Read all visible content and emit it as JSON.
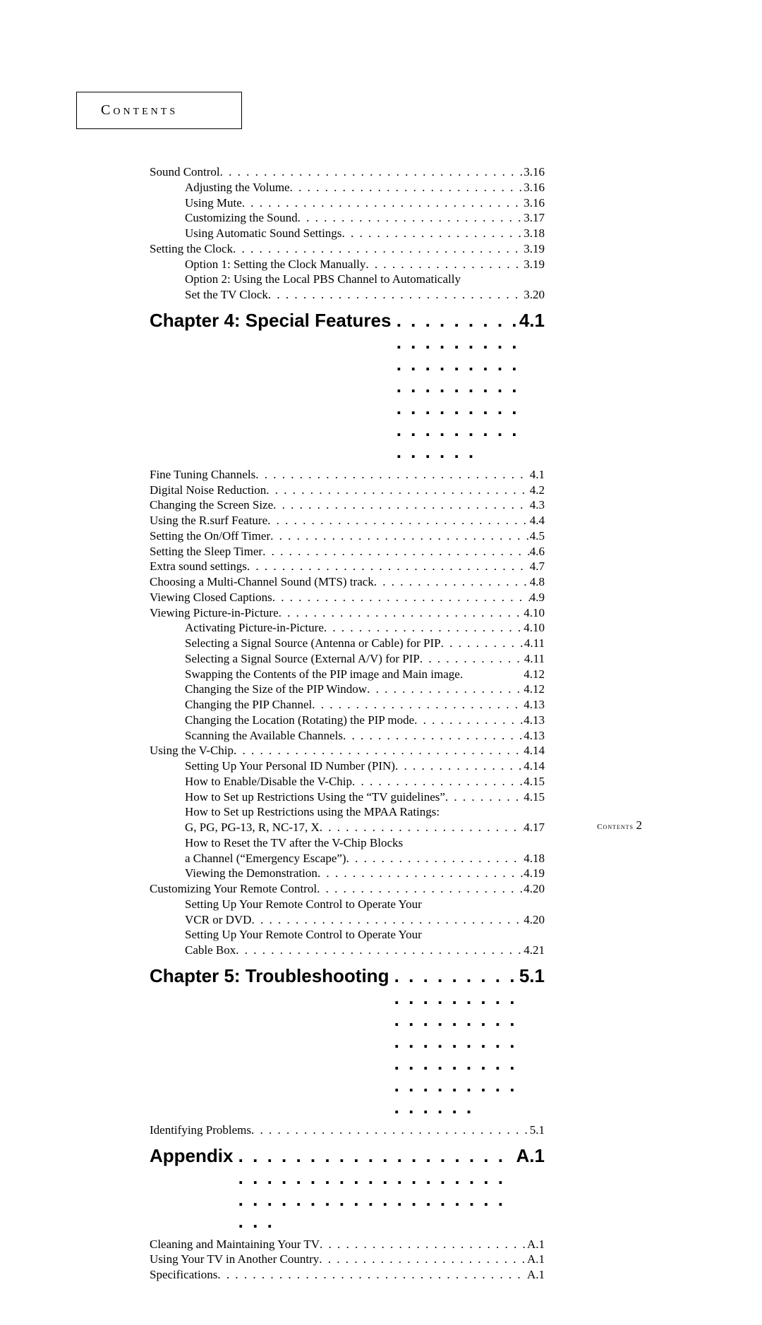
{
  "header": "Contents",
  "footer_label": "Contents",
  "footer_page": "2",
  "sections": [
    {
      "type": "group",
      "items": [
        {
          "indent": 0,
          "label": "Sound Control",
          "page": "3.16"
        },
        {
          "indent": 1,
          "label": "Adjusting the Volume",
          "page": "3.16"
        },
        {
          "indent": 1,
          "label": "Using Mute",
          "page": "3.16"
        },
        {
          "indent": 1,
          "label": "Customizing the Sound",
          "page": "3.17"
        },
        {
          "indent": 1,
          "label": "Using Automatic Sound Settings",
          "page": "3.18"
        },
        {
          "indent": 0,
          "label": "Setting the Clock",
          "page": "3.19"
        },
        {
          "indent": 1,
          "label": "Option 1: Setting the Clock Manually",
          "page": "3.19"
        },
        {
          "indent": 1,
          "label": "Option 2: Using the Local PBS Channel to Automatically",
          "nopage": true
        },
        {
          "indent": 1,
          "label": "Set the TV Clock",
          "page": "3.20"
        }
      ]
    },
    {
      "type": "chapter",
      "label": "Chapter 4: Special Features",
      "page": "4.1",
      "items": [
        {
          "indent": 0,
          "label": "Fine Tuning Channels",
          "page": "4.1"
        },
        {
          "indent": 0,
          "label": "Digital Noise Reduction",
          "page": "4.2"
        },
        {
          "indent": 0,
          "label": "Changing the Screen Size",
          "page": "4.3"
        },
        {
          "indent": 0,
          "label": "Using the R.surf Feature",
          "page": "4.4"
        },
        {
          "indent": 0,
          "label": "Setting the On/Off Timer",
          "page": "4.5"
        },
        {
          "indent": 0,
          "label": "Setting the Sleep Timer",
          "page": "4.6"
        },
        {
          "indent": 0,
          "label": "Extra sound settings",
          "page": "4.7"
        },
        {
          "indent": 0,
          "label": "Choosing a Multi-Channel Sound (MTS) track",
          "page": "4.8"
        },
        {
          "indent": 0,
          "label": "Viewing Closed Captions",
          "page": "4.9"
        },
        {
          "indent": 0,
          "label": "Viewing Picture-in-Picture",
          "page": "4.10"
        },
        {
          "indent": 1,
          "label": "Activating Picture-in-Picture",
          "page": "4.10"
        },
        {
          "indent": 1,
          "label": "Selecting a Signal Source (Antenna or Cable) for PIP",
          "page": "4.11"
        },
        {
          "indent": 1,
          "label": "Selecting a Signal Source (External A/V) for PIP",
          "page": "4.11"
        },
        {
          "indent": 1,
          "label": "Swapping the Contents of the PIP image and Main image",
          "page": "4.12",
          "tight": true
        },
        {
          "indent": 1,
          "label": "Changing the Size of the PIP Window",
          "page": "4.12"
        },
        {
          "indent": 1,
          "label": "Changing the PIP Channel",
          "page": "4.13"
        },
        {
          "indent": 1,
          "label": "Changing the Location (Rotating) the PIP mode",
          "page": "4.13"
        },
        {
          "indent": 1,
          "label": "Scanning the Available Channels",
          "page": "4.13"
        },
        {
          "indent": 0,
          "label": "Using the V-Chip",
          "page": "4.14"
        },
        {
          "indent": 1,
          "label": "Setting Up Your Personal ID Number (PIN)",
          "page": "4.14"
        },
        {
          "indent": 1,
          "label": "How to Enable/Disable the V-Chip",
          "page": "4.15"
        },
        {
          "indent": 1,
          "label": "How to Set up Restrictions Using the “TV guidelines”",
          "page": "4.15"
        },
        {
          "indent": 1,
          "label": "How to Set up Restrictions using the MPAA Ratings:",
          "nopage": true
        },
        {
          "indent": 1,
          "label": "G, PG, PG-13, R, NC-17, X",
          "page": "4.17"
        },
        {
          "indent": 1,
          "label": "How to Reset the TV after the V-Chip Blocks",
          "nopage": true
        },
        {
          "indent": 1,
          "label": "a Channel (“Emergency Escape”)",
          "page": "4.18"
        },
        {
          "indent": 1,
          "label": "Viewing the Demonstration",
          "page": "4.19"
        },
        {
          "indent": 0,
          "label": "Customizing Your Remote Control",
          "page": "4.20"
        },
        {
          "indent": 1,
          "label": "Setting Up Your Remote Control to Operate Your",
          "nopage": true
        },
        {
          "indent": 1,
          "label": "VCR or DVD",
          "page": "4.20"
        },
        {
          "indent": 1,
          "label": "Setting Up Your Remote Control to Operate Your",
          "nopage": true
        },
        {
          "indent": 1,
          "label": "Cable Box",
          "page": "4.21"
        }
      ]
    },
    {
      "type": "chapter",
      "label": "Chapter 5: Troubleshooting",
      "page": "5.1",
      "items": [
        {
          "indent": 0,
          "label": "Identifying Problems",
          "page": "5.1"
        }
      ]
    },
    {
      "type": "chapter",
      "label": "Appendix",
      "page": "A.1",
      "items": [
        {
          "indent": 0,
          "label": "Cleaning and Maintaining Your TV",
          "page": "A.1"
        },
        {
          "indent": 0,
          "label": "Using Your TV in Another Country",
          "page": "A.1"
        },
        {
          "indent": 0,
          "label": "Specifications",
          "page": "A.1"
        }
      ]
    }
  ]
}
